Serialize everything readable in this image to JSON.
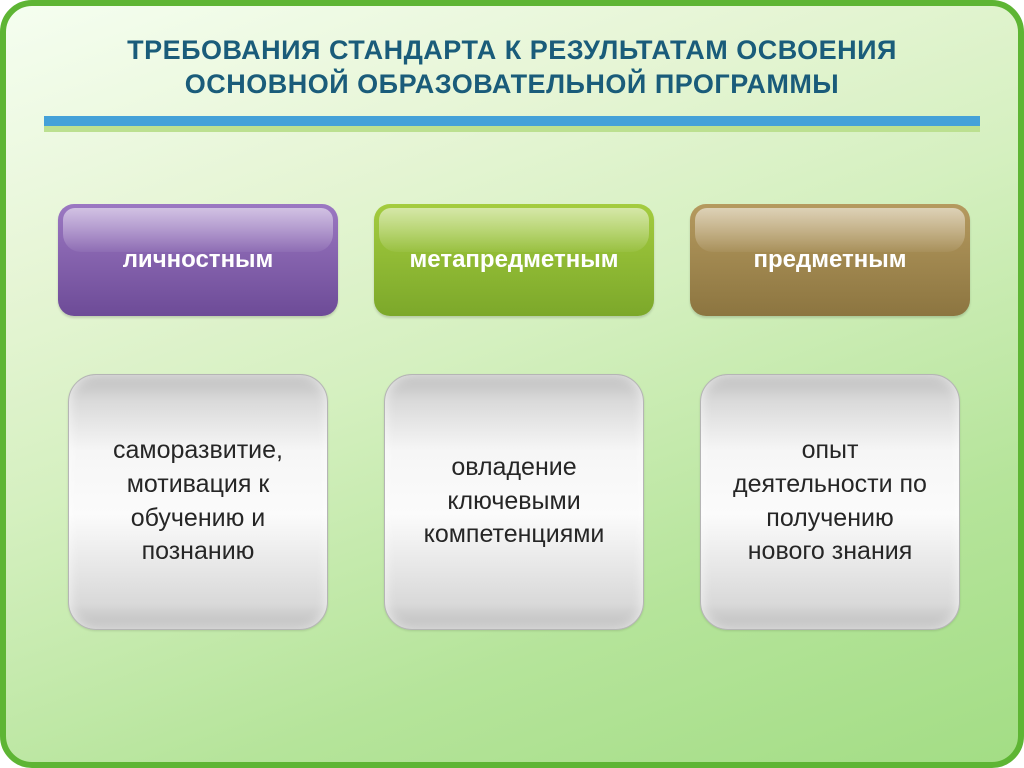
{
  "title": {
    "text": "ТРЕБОВАНИЯ СТАНДАРТА К РЕЗУЛЬТАТАМ ОСВОЕНИЯ ОСНОВНОЙ ОБРАЗОВАТЕЛЬНОЙ ПРОГРАММЫ",
    "color": "#1a5c7a",
    "fontsize": 27
  },
  "divider": {
    "blue": "#44a1d8",
    "green": "#bce090"
  },
  "columns": [
    {
      "header": "личностным",
      "header_bg_top": "#9b78c2",
      "header_bg_bottom": "#6d4b97",
      "header_fontsize": 24,
      "body": "саморазвитие, мотивация к обучению и познанию",
      "body_color": "#262626",
      "body_fontsize": 25
    },
    {
      "header": "метапредметным",
      "header_bg_top": "#a4cc3f",
      "header_bg_bottom": "#7ca82a",
      "header_fontsize": 24,
      "body": "овладение ключевыми компетенциями",
      "body_color": "#262626",
      "body_fontsize": 25
    },
    {
      "header": "предметным",
      "header_bg_top": "#b59a5f",
      "header_bg_bottom": "#8c7540",
      "header_fontsize": 24,
      "body": "опыт деятельности по получению нового знания",
      "body_color": "#262626",
      "body_fontsize": 25
    }
  ]
}
